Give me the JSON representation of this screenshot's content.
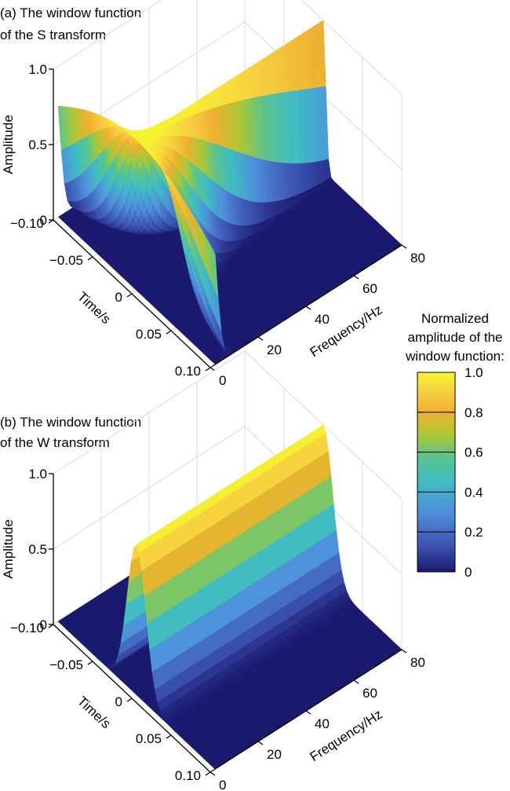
{
  "colorbar": {
    "title_lines": [
      "Normalized",
      "amplitude of the",
      "window function:"
    ],
    "ticks": [
      "1.0",
      "0.8",
      "0.6",
      "0.4",
      "0.2",
      "0"
    ],
    "tick_values": [
      1.0,
      0.8,
      0.6,
      0.4,
      0.2,
      0
    ],
    "colormap": [
      "#1a1a6e",
      "#3b4fae",
      "#4f8fdc",
      "#3fbcc4",
      "#5cc48a",
      "#a8c838",
      "#f0b030",
      "#f7d040",
      "#f5f530"
    ]
  },
  "chart_data": [
    {
      "type": "surface3d",
      "title_lines": [
        "(a) The window function",
        "of the S transform"
      ],
      "xlabel": "Time/s",
      "ylabel": "Frequency/Hz",
      "zlabel": "Amplitude",
      "x_ticks": [
        "−0.10",
        "−0.05",
        "0",
        "0.05",
        "0.10"
      ],
      "y_ticks": [
        "0",
        "20",
        "40",
        "60",
        "80"
      ],
      "z_ticks": [
        "0",
        "0.5",
        "1.0"
      ],
      "xlim": [
        -0.1,
        0.1
      ],
      "ylim": [
        0,
        80
      ],
      "zlim": [
        0,
        1
      ],
      "window": "gaussian_width_inverse_to_frequency",
      "peak_amplitude": 1.0
    },
    {
      "type": "surface3d",
      "title_lines": [
        "(b) The window function",
        "of the W transform"
      ],
      "xlabel": "Time/s",
      "ylabel": "Frequency/Hz",
      "zlabel": "Amplitude",
      "x_ticks": [
        "−0.10",
        "−0.05",
        "0",
        "0.05",
        "0.10"
      ],
      "y_ticks": [
        "0",
        "20",
        "40",
        "60",
        "80"
      ],
      "z_ticks": [
        "0",
        "0.5",
        "1.0"
      ],
      "xlim": [
        -0.1,
        0.1
      ],
      "ylim": [
        0,
        80
      ],
      "zlim": [
        0,
        1
      ],
      "window": "gaussian_constant_width",
      "peak_amplitude": 1.0
    }
  ]
}
